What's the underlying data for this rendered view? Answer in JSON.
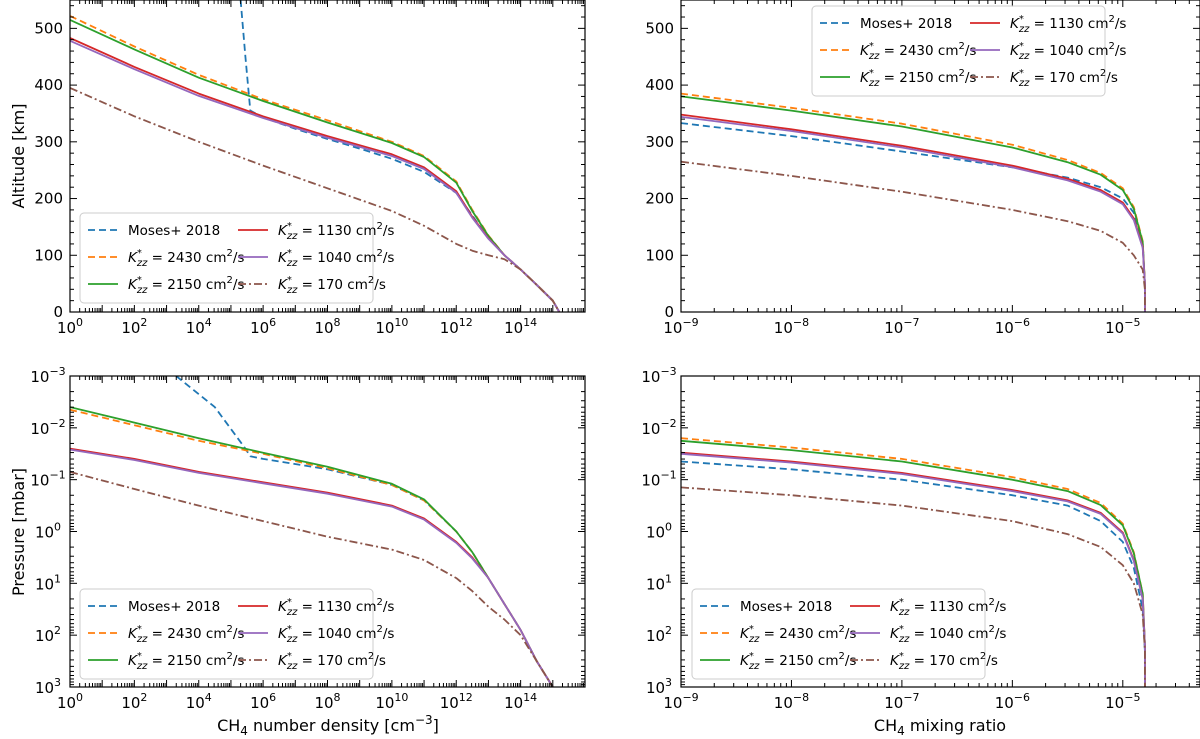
{
  "figure": {
    "ylabel_top": "Altitude [km]",
    "ylabel_bottom": "Pressure [mbar]",
    "xlabel_left": "CH4 number density [cm−3]",
    "xlabel_right": "CH4 mixing ratio"
  },
  "legend": [
    {
      "label": "Moses+ 2018",
      "color": "#1f77b4",
      "dash": "dashed"
    },
    {
      "label": "K*zz = 2430 cm2/s",
      "color": "#ff7f0e",
      "dash": "dashed"
    },
    {
      "label": "K*zz = 2150 cm2/s",
      "color": "#2ca02c",
      "dash": "solid"
    },
    {
      "label": "K*zz = 1130 cm2/s",
      "color": "#d62728",
      "dash": "solid"
    },
    {
      "label": "K*zz = 1040 cm2/s",
      "color": "#9467bd",
      "dash": "solid"
    },
    {
      "label": "K*zz = 170 cm2/s",
      "color": "#8c564b",
      "dash": "dashdot"
    }
  ],
  "chart_data": [
    {
      "type": "line",
      "panel": "top-left",
      "xlabel": "CH4 number density [cm−3]",
      "ylabel": "Altitude [km]",
      "xscale": "log",
      "xlim": [
        1,
        1e+16
      ],
      "ylim": [
        0,
        550
      ],
      "xticks": [
        "10^0",
        "10^2",
        "10^4",
        "10^6",
        "10^8",
        "10^10",
        "10^12",
        "10^14"
      ],
      "yticks": [
        "0",
        "100",
        "200",
        "300",
        "400",
        "500"
      ],
      "legend_position": "bottom-left",
      "series": [
        {
          "name": "Moses+ 2018",
          "x_log10": [
            5.3,
            5.45,
            5.6,
            6,
            7,
            8,
            9,
            10,
            11,
            12,
            12.5,
            13,
            13.5,
            14,
            14.5,
            15,
            15.2
          ],
          "y": [
            550,
            450,
            355,
            343,
            323,
            305,
            288,
            270,
            247,
            210,
            170,
            130,
            100,
            75,
            48,
            20,
            0
          ]
        },
        {
          "name": "K*zz = 2430",
          "x_log10": [
            0,
            2,
            4,
            6,
            8,
            10,
            11,
            12,
            12.5,
            13,
            13.5,
            14,
            14.5,
            15,
            15.2
          ],
          "y": [
            522,
            468,
            418,
            375,
            338,
            300,
            275,
            230,
            180,
            135,
            100,
            75,
            48,
            20,
            0
          ]
        },
        {
          "name": "K*zz = 2150",
          "x_log10": [
            0,
            2,
            4,
            6,
            8,
            10,
            11,
            12,
            12.5,
            13,
            13.5,
            14,
            14.5,
            15,
            15.2
          ],
          "y": [
            515,
            463,
            413,
            372,
            334,
            298,
            273,
            228,
            178,
            134,
            100,
            75,
            48,
            20,
            0
          ]
        },
        {
          "name": "K*zz = 1130",
          "x_log10": [
            0,
            2,
            4,
            6,
            8,
            10,
            11,
            12,
            12.5,
            13,
            13.5,
            14,
            14.5,
            15,
            15.2
          ],
          "y": [
            483,
            432,
            385,
            345,
            310,
            278,
            255,
            213,
            168,
            130,
            100,
            75,
            48,
            20,
            0
          ]
        },
        {
          "name": "K*zz = 1040",
          "x_log10": [
            0,
            2,
            4,
            6,
            8,
            10,
            11,
            12,
            12.5,
            13,
            13.5,
            14,
            14.5,
            15,
            15.2
          ],
          "y": [
            478,
            428,
            381,
            342,
            307,
            275,
            252,
            210,
            166,
            129,
            100,
            75,
            48,
            20,
            0
          ]
        },
        {
          "name": "K*zz = 170",
          "x_log10": [
            0,
            2,
            4,
            6,
            8,
            10,
            11,
            12,
            12.5,
            13,
            13.5,
            14,
            14.5,
            15,
            15.2
          ],
          "y": [
            395,
            345,
            300,
            258,
            218,
            178,
            152,
            120,
            108,
            100,
            93,
            75,
            48,
            20,
            0
          ]
        }
      ]
    },
    {
      "type": "line",
      "panel": "top-right",
      "xlabel": "CH4 mixing ratio",
      "ylabel": "",
      "xscale": "log",
      "xlim": [
        1e-09,
        5e-05
      ],
      "ylim": [
        0,
        550
      ],
      "xticks": [
        "10^-9",
        "10^-8",
        "10^-7",
        "10^-6",
        "10^-5"
      ],
      "yticks": [
        "0",
        "100",
        "200",
        "300",
        "400",
        "500"
      ],
      "legend_position": "top-right",
      "series": [
        {
          "name": "Moses+ 2018",
          "x_log10": [
            -9,
            -8,
            -7,
            -6,
            -5.5,
            -5.2,
            -5.0,
            -4.9,
            -4.82,
            -4.8,
            -4.8
          ],
          "y": [
            333,
            310,
            283,
            255,
            237,
            220,
            200,
            175,
            120,
            50,
            0
          ]
        },
        {
          "name": "K*zz = 2430",
          "x_log10": [
            -9,
            -8,
            -7,
            -6,
            -5.5,
            -5.2,
            -5.0,
            -4.9,
            -4.82,
            -4.8,
            -4.8
          ],
          "y": [
            385,
            360,
            332,
            295,
            268,
            245,
            218,
            185,
            125,
            50,
            0
          ]
        },
        {
          "name": "K*zz = 2150",
          "x_log10": [
            -9,
            -8,
            -7,
            -6,
            -5.5,
            -5.2,
            -5.0,
            -4.9,
            -4.82,
            -4.8,
            -4.8
          ],
          "y": [
            380,
            355,
            327,
            290,
            264,
            242,
            215,
            182,
            123,
            50,
            0
          ]
        },
        {
          "name": "K*zz = 1130",
          "x_log10": [
            -9,
            -8,
            -7,
            -6,
            -5.5,
            -5.2,
            -5.0,
            -4.9,
            -4.82,
            -4.8,
            -4.8
          ],
          "y": [
            348,
            322,
            293,
            258,
            235,
            215,
            193,
            165,
            115,
            50,
            0
          ]
        },
        {
          "name": "K*zz = 1040",
          "x_log10": [
            -9,
            -8,
            -7,
            -6,
            -5.5,
            -5.2,
            -5.0,
            -4.9,
            -4.82,
            -4.8,
            -4.8
          ],
          "y": [
            344,
            319,
            290,
            255,
            232,
            212,
            190,
            162,
            113,
            50,
            0
          ]
        },
        {
          "name": "K*zz = 170",
          "x_log10": [
            -9,
            -8,
            -7,
            -6,
            -5.5,
            -5.2,
            -5.0,
            -4.9,
            -4.82,
            -4.8,
            -4.8
          ],
          "y": [
            265,
            240,
            212,
            180,
            160,
            143,
            122,
            100,
            75,
            40,
            0
          ]
        }
      ]
    },
    {
      "type": "line",
      "panel": "bottom-left",
      "xlabel": "CH4 number density [cm−3]",
      "ylabel": "Pressure [mbar]",
      "xscale": "log",
      "yscale": "log-inverted",
      "xlim": [
        1,
        1e+16
      ],
      "ylim": [
        0.001,
        1000.0
      ],
      "xticks": [
        "10^0",
        "10^2",
        "10^4",
        "10^6",
        "10^8",
        "10^10",
        "10^12",
        "10^14"
      ],
      "yticks": [
        "10^-3",
        "10^-2",
        "10^-1",
        "10^0",
        "10^1",
        "10^2",
        "10^3"
      ],
      "legend_position": "bottom-left",
      "series": [
        {
          "name": "Moses+ 2018",
          "x_log10": [
            3.3,
            4.5,
            5.45,
            5.6,
            6,
            8,
            10,
            11,
            12,
            12.5,
            13,
            13.5,
            14,
            14.5,
            15
          ],
          "y_log10": [
            -3,
            -2.4,
            -1.6,
            -1.45,
            -1.4,
            -1.2,
            -0.9,
            -0.6,
            0,
            0.4,
            0.9,
            1.4,
            1.9,
            2.5,
            3
          ]
        },
        {
          "name": "K*zz = 2430",
          "x_log10": [
            0,
            2,
            4,
            6,
            8,
            10,
            11,
            12,
            12.5,
            13,
            13.5,
            14,
            14.5,
            15
          ],
          "y_log10": [
            -2.35,
            -2.05,
            -1.75,
            -1.5,
            -1.22,
            -0.9,
            -0.6,
            0,
            0.4,
            0.9,
            1.4,
            1.9,
            2.5,
            3
          ]
        },
        {
          "name": "K*zz = 2150",
          "x_log10": [
            0,
            2,
            4,
            6,
            8,
            10,
            11,
            12,
            12.5,
            13,
            13.5,
            14,
            14.5,
            15
          ],
          "y_log10": [
            -2.4,
            -2.1,
            -1.8,
            -1.52,
            -1.25,
            -0.92,
            -0.62,
            0,
            0.4,
            0.9,
            1.4,
            1.9,
            2.5,
            3
          ]
        },
        {
          "name": "K*zz = 1130",
          "x_log10": [
            0,
            2,
            4,
            6,
            8,
            10,
            11,
            12,
            12.5,
            13,
            13.5,
            14,
            14.5,
            15
          ],
          "y_log10": [
            -1.6,
            -1.4,
            -1.15,
            -0.95,
            -0.75,
            -0.5,
            -0.25,
            0.2,
            0.5,
            0.9,
            1.4,
            1.9,
            2.5,
            3
          ]
        },
        {
          "name": "K*zz = 1040",
          "x_log10": [
            0,
            2,
            4,
            6,
            8,
            10,
            11,
            12,
            12.5,
            13,
            13.5,
            14,
            14.5,
            15
          ],
          "y_log10": [
            -1.58,
            -1.38,
            -1.13,
            -0.93,
            -0.73,
            -0.48,
            -0.23,
            0.22,
            0.52,
            0.9,
            1.4,
            1.9,
            2.5,
            3
          ]
        },
        {
          "name": "K*zz = 170",
          "x_log10": [
            0,
            2,
            4,
            6,
            8,
            10,
            11,
            12,
            12.5,
            13,
            13.5,
            14,
            14.5,
            15
          ],
          "y_log10": [
            -1.15,
            -0.82,
            -0.5,
            -0.2,
            0.1,
            0.35,
            0.55,
            0.9,
            1.15,
            1.45,
            1.7,
            2.0,
            2.5,
            3
          ]
        }
      ]
    },
    {
      "type": "line",
      "panel": "bottom-right",
      "xlabel": "CH4 mixing ratio",
      "ylabel": "",
      "xscale": "log",
      "yscale": "log-inverted",
      "xlim": [
        1e-09,
        5e-05
      ],
      "ylim": [
        0.001,
        1000.0
      ],
      "xticks": [
        "10^-9",
        "10^-8",
        "10^-7",
        "10^-6",
        "10^-5"
      ],
      "yticks": [
        "10^-3",
        "10^-2",
        "10^-1",
        "10^0",
        "10^1",
        "10^2",
        "10^3"
      ],
      "legend_position": "bottom-left",
      "series": [
        {
          "name": "Moses+ 2018",
          "x_log10": [
            -9,
            -8,
            -7,
            -6,
            -5.5,
            -5.2,
            -5.0,
            -4.9,
            -4.82,
            -4.8,
            -4.8
          ],
          "y_log10": [
            -1.35,
            -1.2,
            -1.0,
            -0.7,
            -0.5,
            -0.2,
            0.2,
            0.7,
            1.5,
            2.3,
            3
          ]
        },
        {
          "name": "K*zz = 2430",
          "x_log10": [
            -9,
            -8,
            -7,
            -6,
            -5.5,
            -5.2,
            -5.0,
            -4.9,
            -4.82,
            -4.8,
            -4.8
          ],
          "y_log10": [
            -1.8,
            -1.62,
            -1.4,
            -1.05,
            -0.82,
            -0.55,
            -0.15,
            0.4,
            1.2,
            2.2,
            3
          ]
        },
        {
          "name": "K*zz = 2150",
          "x_log10": [
            -9,
            -8,
            -7,
            -6,
            -5.5,
            -5.2,
            -5.0,
            -4.9,
            -4.82,
            -4.8,
            -4.8
          ],
          "y_log10": [
            -1.75,
            -1.57,
            -1.35,
            -1.0,
            -0.78,
            -0.51,
            -0.12,
            0.42,
            1.2,
            2.2,
            3
          ]
        },
        {
          "name": "K*zz = 1130",
          "x_log10": [
            -9,
            -8,
            -7,
            -6,
            -5.5,
            -5.2,
            -5.0,
            -4.9,
            -4.82,
            -4.8,
            -4.8
          ],
          "y_log10": [
            -1.52,
            -1.35,
            -1.13,
            -0.8,
            -0.6,
            -0.36,
            0.02,
            0.55,
            1.3,
            2.2,
            3
          ]
        },
        {
          "name": "K*zz = 1040",
          "x_log10": [
            -9,
            -8,
            -7,
            -6,
            -5.5,
            -5.2,
            -5.0,
            -4.9,
            -4.82,
            -4.8,
            -4.8
          ],
          "y_log10": [
            -1.5,
            -1.33,
            -1.11,
            -0.78,
            -0.58,
            -0.34,
            0.04,
            0.57,
            1.3,
            2.2,
            3
          ]
        },
        {
          "name": "K*zz = 170",
          "x_log10": [
            -9,
            -8,
            -7,
            -6,
            -5.5,
            -5.2,
            -5.0,
            -4.9,
            -4.82,
            -4.8,
            -4.8
          ],
          "y_log10": [
            -0.85,
            -0.7,
            -0.5,
            -0.2,
            0.05,
            0.3,
            0.65,
            1.0,
            1.6,
            2.3,
            3
          ]
        }
      ]
    }
  ]
}
